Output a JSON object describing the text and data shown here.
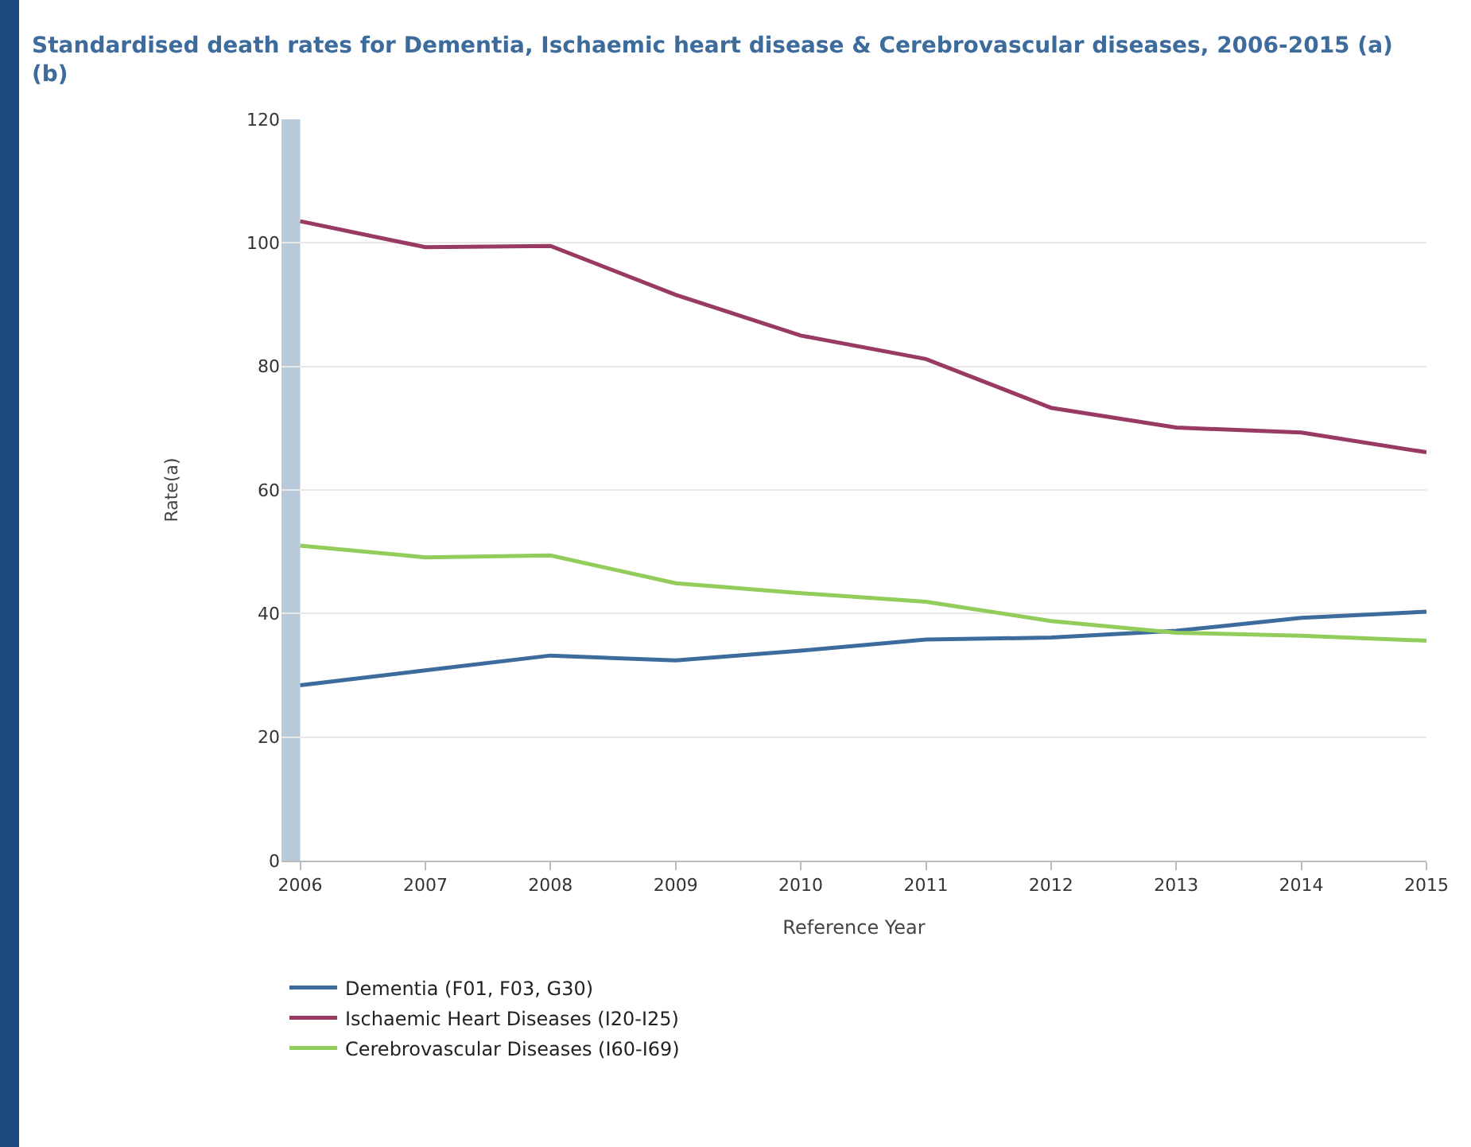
{
  "chart_data": {
    "type": "line",
    "title": "Standardised death rates for Dementia, Ischaemic heart disease & Cerebrovascular diseases, 2006-2015 (a)(b)",
    "xlabel": "Reference Year",
    "ylabel": "Rate(a)",
    "x": [
      2006,
      2007,
      2008,
      2009,
      2010,
      2011,
      2012,
      2013,
      2014,
      2015
    ],
    "series": [
      {
        "name": "Dementia (F01, F03, G30)",
        "color": "#3d6c9c",
        "values": [
          28.4,
          30.8,
          33.2,
          32.4,
          34,
          35.8,
          36.1,
          37.2,
          39.3,
          40.3
        ]
      },
      {
        "name": "Ischaemic Heart Diseases (I20-I25)",
        "color": "#983a62",
        "values": [
          103.5,
          99.3,
          99.5,
          91.6,
          85,
          81.2,
          73.3,
          70.1,
          69.3,
          66.1
        ]
      },
      {
        "name": "Cerebrovascular Diseases (I60-I69)",
        "color": "#92cc5a",
        "values": [
          51,
          49.1,
          49.4,
          44.9,
          43.3,
          41.9,
          38.8,
          36.9,
          36.4,
          35.6
        ]
      }
    ],
    "xlim": [
      2005.85,
      2015
    ],
    "xticks": [
      2006,
      2007,
      2008,
      2009,
      2010,
      2011,
      2012,
      2013,
      2014,
      2015
    ],
    "ylim": [
      0,
      120
    ],
    "yticks": [
      0,
      20,
      40,
      60,
      80,
      100,
      120
    ],
    "bands": [
      {
        "axis": "x",
        "from": 2005.85,
        "to": 2006,
        "color": "#b9cbdb"
      }
    ],
    "grid": "y",
    "legend": "bottom",
    "marker": "none",
    "line_style": "solid"
  }
}
